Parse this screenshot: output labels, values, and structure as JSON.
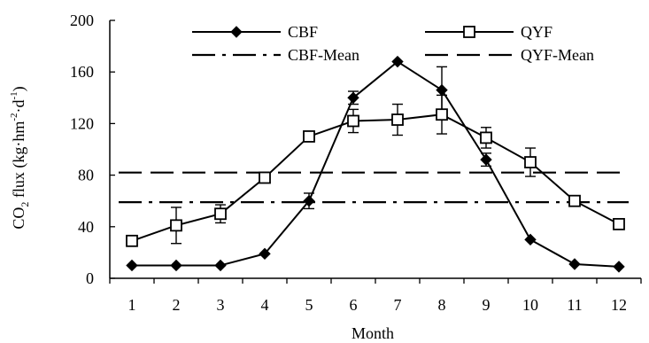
{
  "chart_data": {
    "type": "line",
    "xlabel": "Month",
    "ylabel": {
      "main": "CO",
      "sub": "2",
      "unit_pre": " flux (kg·hm",
      "sup1": "-2",
      "mid": "·d",
      "sup2": "-1",
      "unit_post": ")"
    },
    "x": [
      1,
      2,
      3,
      4,
      5,
      6,
      7,
      8,
      9,
      10,
      11,
      12
    ],
    "x_tick_labels": [
      "1",
      "2",
      "3",
      "4",
      "5",
      "6",
      "7",
      "8",
      "9",
      "10",
      "11",
      "12"
    ],
    "ylim": [
      0,
      200
    ],
    "y_ticks": [
      0,
      40,
      80,
      120,
      160,
      200
    ],
    "y_tick_labels": [
      "0",
      "40",
      "80",
      "120",
      "160",
      "200"
    ],
    "grid": false,
    "legend_position": "top",
    "series": [
      {
        "name": "CBF",
        "marker": "filled-diamond",
        "line": "solid",
        "color": "#000000",
        "values": [
          10,
          10,
          10,
          19,
          60,
          140,
          168,
          146,
          92,
          30,
          11,
          9
        ],
        "errors": [
          0,
          0,
          0,
          0,
          6,
          5,
          0,
          18,
          5,
          0,
          0,
          0
        ]
      },
      {
        "name": "QYF",
        "marker": "open-square",
        "line": "solid",
        "color": "#000000",
        "values": [
          29,
          41,
          50,
          78,
          110,
          122,
          123,
          127,
          109,
          90,
          60,
          42
        ],
        "errors": [
          0,
          14,
          7,
          0,
          3,
          9,
          12,
          15,
          8,
          11,
          4,
          4
        ]
      }
    ],
    "reference_lines": [
      {
        "name": "CBF-Mean",
        "value": 59,
        "style": "dash-dot"
      },
      {
        "name": "QYF-Mean",
        "value": 82,
        "style": "dashed"
      }
    ]
  }
}
